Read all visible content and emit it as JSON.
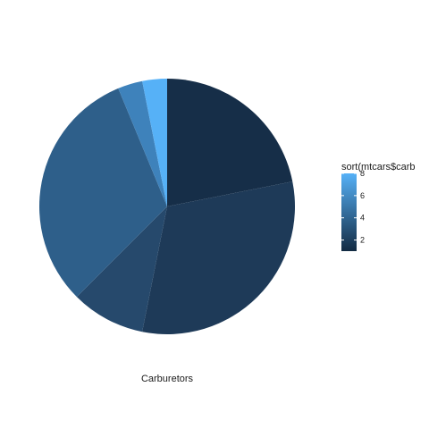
{
  "chart_data": {
    "type": "pie",
    "title": "",
    "xlabel": "Carburetors",
    "slices": [
      {
        "carb": 1,
        "count": 7,
        "color": "#162E48"
      },
      {
        "carb": 2,
        "count": 10,
        "color": "#1E3A58"
      },
      {
        "carb": 3,
        "count": 3,
        "color": "#26496C"
      },
      {
        "carb": 4,
        "count": 10,
        "color": "#2E5F8A"
      },
      {
        "carb": 6,
        "count": 1,
        "color": "#3E82BB"
      },
      {
        "carb": 8,
        "count": 1,
        "color": "#56B1F7"
      }
    ],
    "total": 32,
    "start_angle": "12 o'clock",
    "direction": "clockwise",
    "legend": {
      "title": "sort(mtcars$carb",
      "type": "colorbar",
      "placement": "right",
      "range": [
        1,
        8
      ],
      "ticks": [
        2,
        4,
        6,
        8
      ],
      "low_color": "#132B43",
      "high_color": "#56B1F7"
    }
  }
}
